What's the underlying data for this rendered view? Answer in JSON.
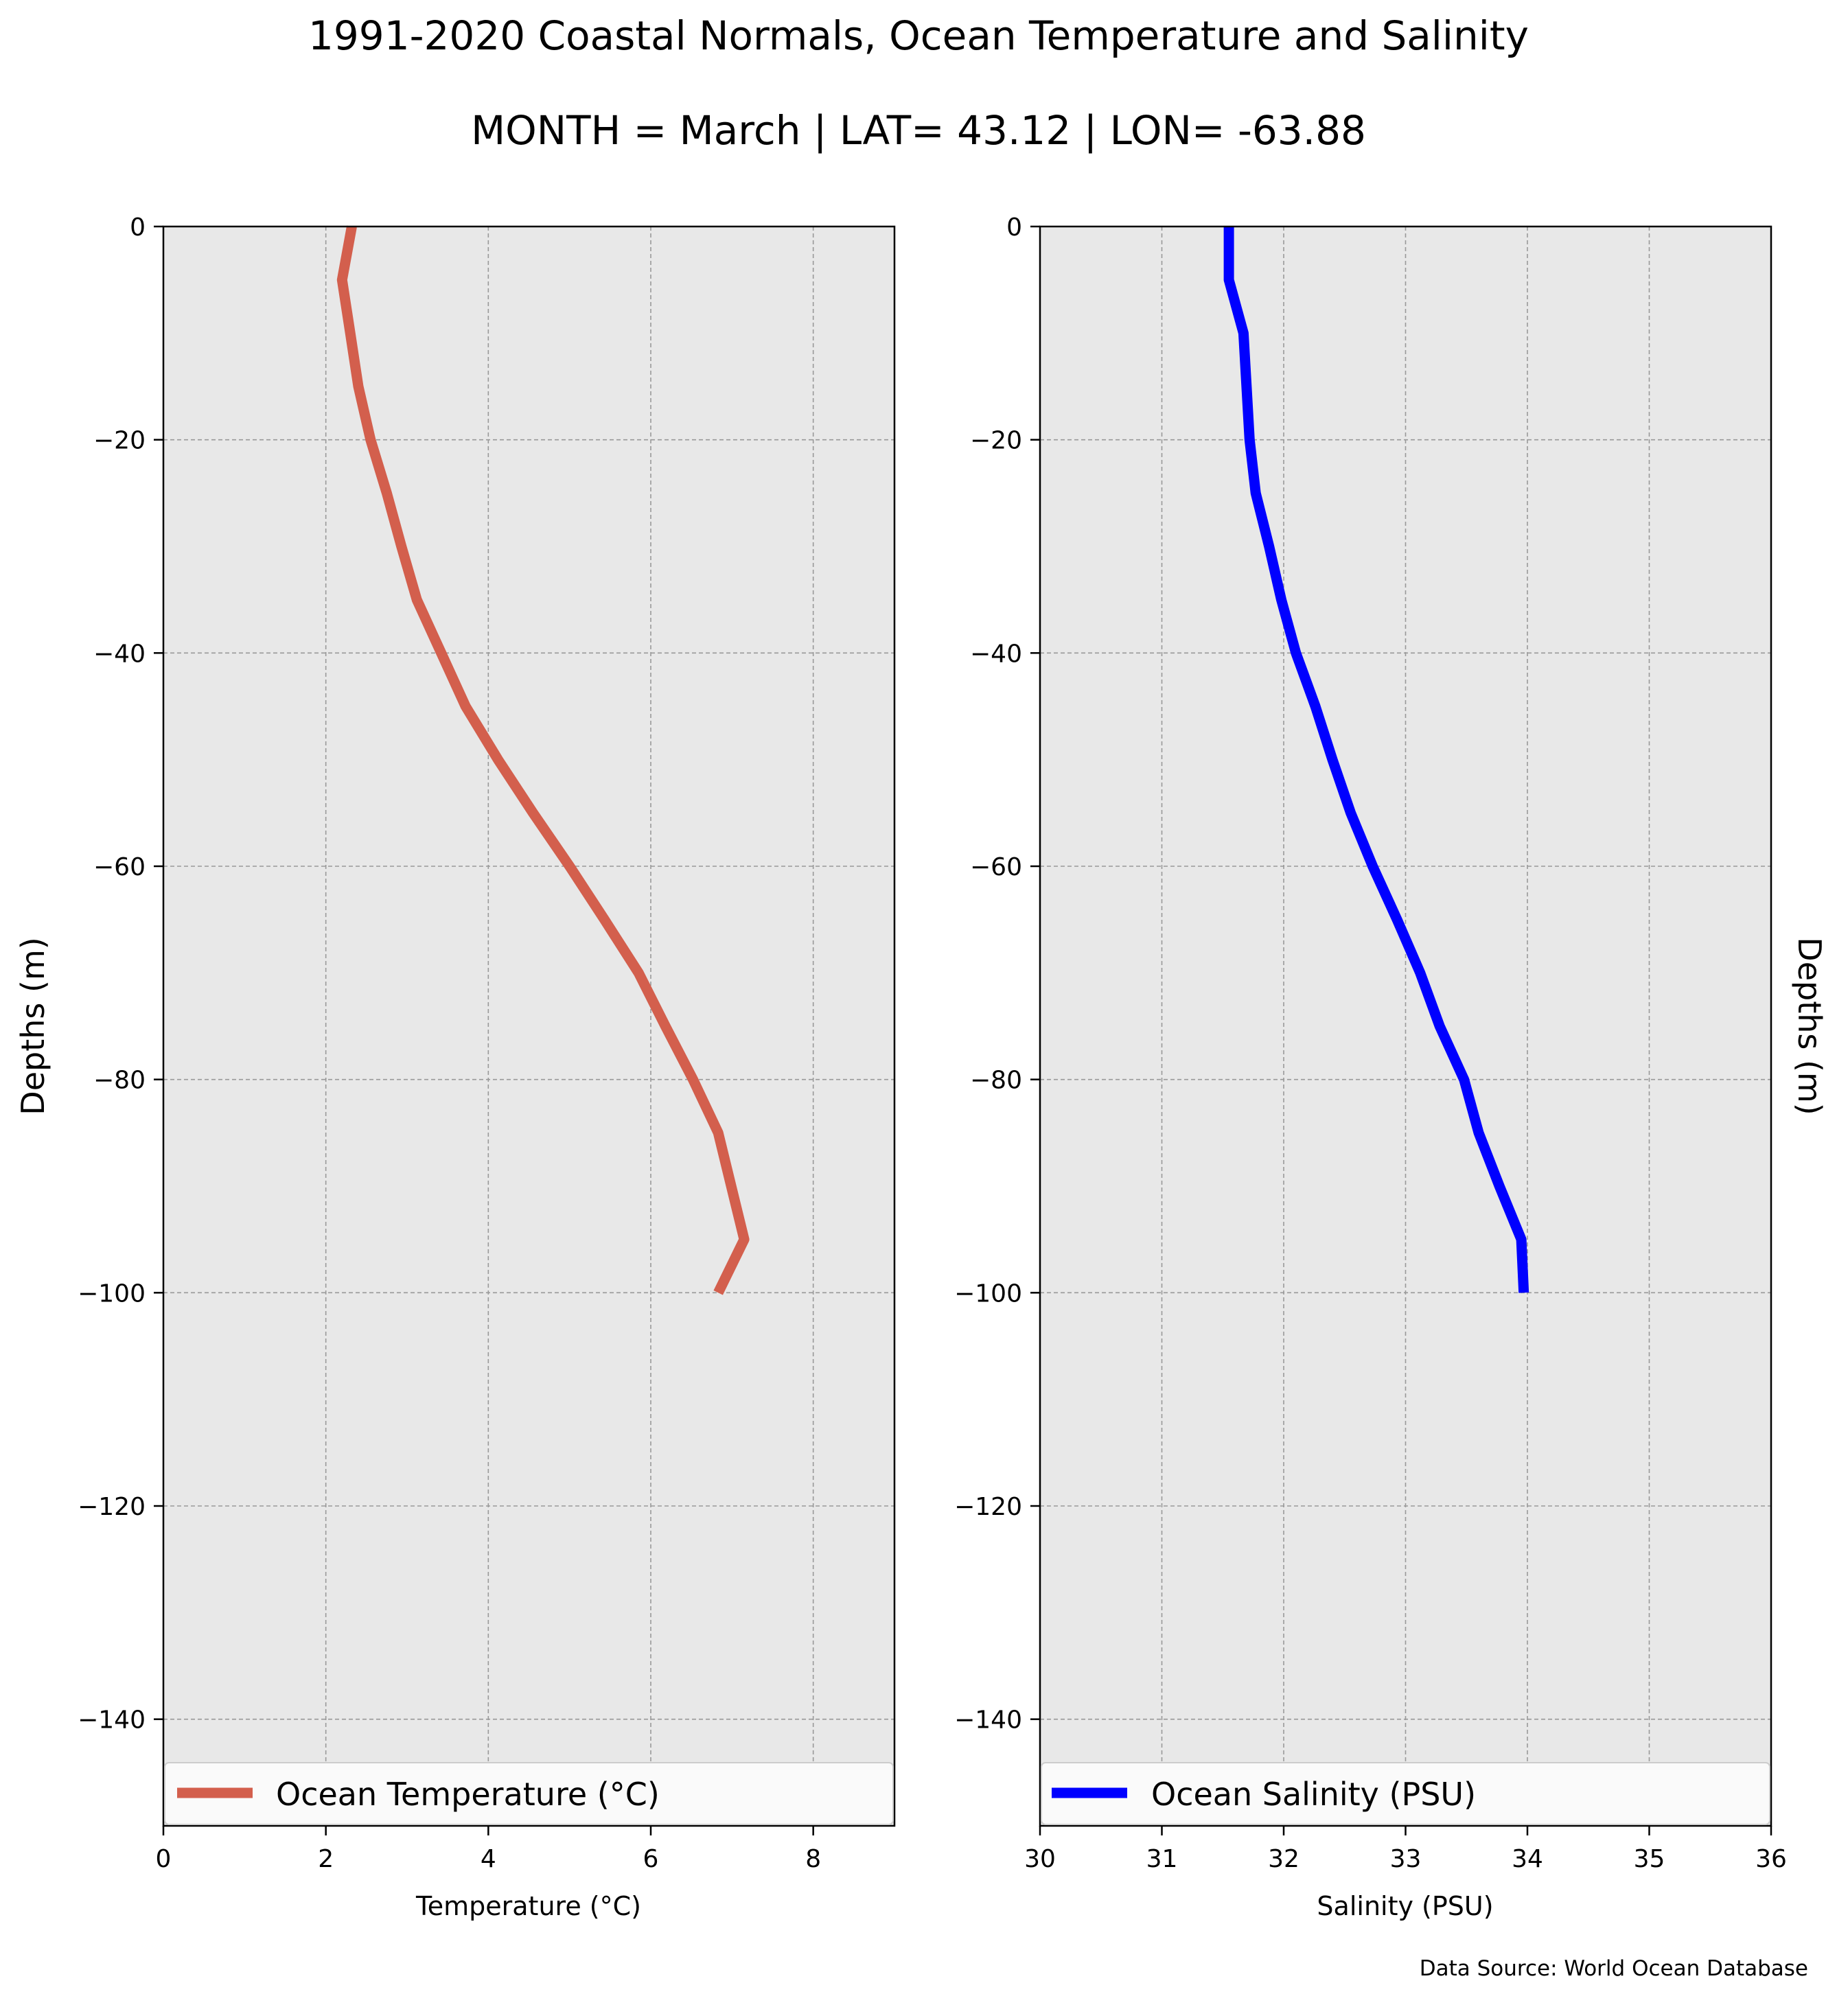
{
  "title": "1991-2020 Coastal Normals, Ocean Temperature and Salinity",
  "subtitle": "MONTH = March | LAT= 43.12 | LON= -63.88",
  "source": "Data Source: World Ocean Database",
  "chart_data": [
    {
      "type": "line",
      "xlabel": "Temperature ($^\\circ$C)",
      "xlabel_display": "Temperature (°C)",
      "ylabel": "Depths (m)",
      "xlim": [
        0,
        9
      ],
      "ylim": [
        -150,
        0
      ],
      "xticks": [
        0,
        2,
        4,
        6,
        8
      ],
      "yticks": [
        0,
        -20,
        -40,
        -60,
        -80,
        -100,
        -120,
        -140
      ],
      "grid": true,
      "legend": "lower-center",
      "series": [
        {
          "name": "Ocean Temperature (°C)",
          "color": "#d35f4d",
          "x": [
            2.32,
            2.2,
            2.3,
            2.4,
            2.55,
            2.75,
            2.93,
            3.12,
            3.42,
            3.72,
            4.12,
            4.55,
            5.0,
            5.43,
            5.85,
            6.18,
            6.52,
            6.83,
            7.15,
            6.83
          ],
          "y": [
            0,
            -5,
            -10,
            -15,
            -20,
            -25,
            -30,
            -35,
            -40,
            -45,
            -50,
            -55,
            -60,
            -65,
            -70,
            -75,
            -80,
            -85,
            -95,
            -100
          ]
        }
      ]
    },
    {
      "type": "line",
      "xlabel": "Salinity (PSU)",
      "ylabel": "Depths (m)",
      "xlim": [
        30,
        36
      ],
      "ylim": [
        -150,
        0
      ],
      "xticks": [
        30,
        31,
        32,
        33,
        34,
        35,
        36
      ],
      "yticks": [
        0,
        -20,
        -40,
        -60,
        -80,
        -100,
        -120,
        -140
      ],
      "grid": true,
      "legend": "lower-center",
      "series": [
        {
          "name": "Ocean Salinity (PSU)",
          "color": "#0000ff",
          "x": [
            31.55,
            31.55,
            31.67,
            31.72,
            31.77,
            31.88,
            31.98,
            32.1,
            32.26,
            32.4,
            32.55,
            32.73,
            32.93,
            33.12,
            33.28,
            33.48,
            33.6,
            33.77,
            33.95,
            33.97
          ],
          "y": [
            0,
            -5,
            -10,
            -20,
            -25,
            -30,
            -35,
            -40,
            -45,
            -50,
            -55,
            -60,
            -65,
            -70,
            -75,
            -80,
            -85,
            -90,
            -95,
            -100
          ]
        }
      ]
    }
  ]
}
